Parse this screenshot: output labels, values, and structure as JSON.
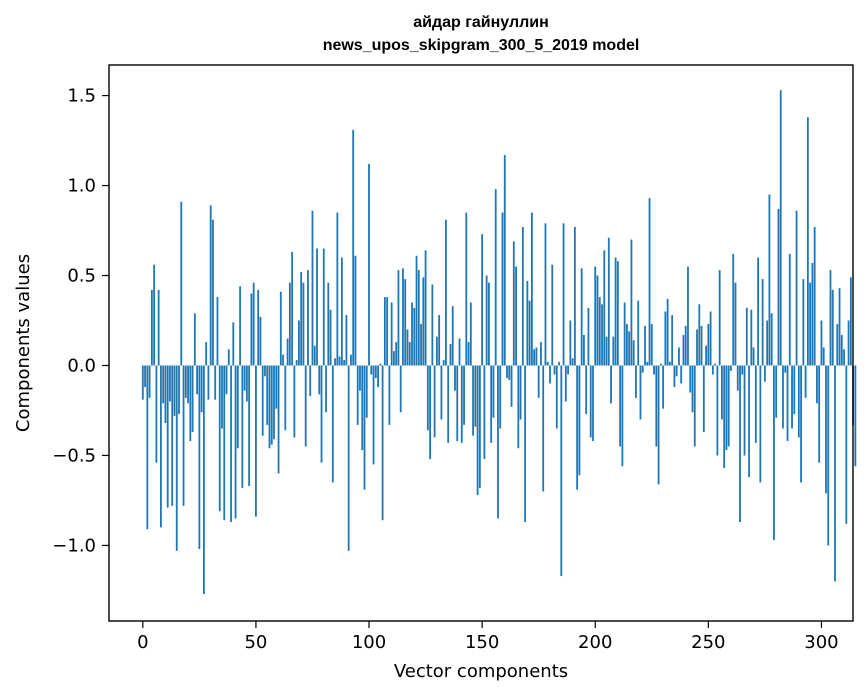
{
  "chart_data": {
    "type": "bar",
    "title": "айдар гайнуллин",
    "subtitle": "news_upos_skipgram_300_5_2019 model",
    "xlabel": "Vector components",
    "ylabel": "Components values",
    "xlim": [
      -14.95,
      313.95
    ],
    "ylim": [
      -1.42,
      1.67
    ],
    "xticks": [
      0,
      50,
      100,
      150,
      200,
      250,
      300
    ],
    "xtick_labels": [
      "0",
      "50",
      "100",
      "150",
      "200",
      "250",
      "300"
    ],
    "yticks": [
      -1.0,
      -0.5,
      0.0,
      0.5,
      1.0,
      1.5
    ],
    "ytick_labels": [
      "−1.0",
      "−0.5",
      "0.0",
      "0.5",
      "1.0",
      "1.5"
    ],
    "bar_color": "#1f77b4",
    "bar_width": 0.8,
    "grid": false,
    "values": [
      -0.19,
      -0.12,
      -0.91,
      -0.18,
      0.42,
      0.56,
      -0.54,
      0.42,
      -0.9,
      -0.21,
      -0.32,
      -0.79,
      -0.2,
      -0.78,
      -0.28,
      -1.03,
      -0.27,
      0.91,
      -0.78,
      -0.18,
      -0.21,
      -0.42,
      -0.37,
      0.29,
      -0.16,
      -1.02,
      -0.26,
      -1.27,
      0.13,
      -0.19,
      0.89,
      0.81,
      -0.19,
      0.38,
      -0.81,
      -0.35,
      -0.86,
      -0.16,
      0.09,
      -0.87,
      0.24,
      -0.85,
      -0.46,
      0.44,
      -0.68,
      -0.14,
      -0.2,
      -0.67,
      0.4,
      0.46,
      -0.84,
      0.42,
      0.27,
      -0.39,
      -0.06,
      -0.33,
      -0.46,
      -0.44,
      -0.41,
      -0.24,
      -0.6,
      0.41,
      0.06,
      -0.36,
      0.15,
      0.46,
      0.63,
      -0.4,
      0.03,
      0.25,
      0.52,
      0.46,
      -0.45,
      0.53,
      -0.17,
      0.86,
      0.11,
      0.65,
      -0.16,
      -0.54,
      0.65,
      -0.26,
      0.46,
      0.31,
      -0.65,
      0.04,
      0.85,
      0.05,
      0.6,
      0.03,
      0.28,
      -1.03,
      0.06,
      1.31,
      0.61,
      -0.33,
      -0.14,
      -0.47,
      -0.69,
      -0.29,
      1.12,
      -0.05,
      -0.55,
      -0.07,
      -0.12,
      0.01,
      -0.86,
      0.38,
      0.38,
      -0.33,
      0.35,
      0.08,
      0.13,
      0.53,
      -0.26,
      0.54,
      0.48,
      0.2,
      0.13,
      0.35,
      0.32,
      0.61,
      0.53,
      0.23,
      0.49,
      0.64,
      -0.36,
      -0.52,
      0.45,
      -0.4,
      0.16,
      0.28,
      -0.3,
      0.03,
      0.81,
      -0.43,
      0.12,
      0.33,
      -0.14,
      -0.42,
      0.15,
      -0.43,
      -0.33,
      0.85,
      0.13,
      0.35,
      -0.39,
      -0.34,
      -0.72,
      -0.68,
      0.73,
      -0.52,
      0.5,
      0.46,
      -0.43,
      -0.29,
      0.98,
      -0.85,
      -0.35,
      0.85,
      1.17,
      -0.07,
      -0.08,
      -0.23,
      0.69,
      0.55,
      -0.46,
      -0.3,
      0.77,
      -0.87,
      0.47,
      0.36,
      0.85,
      0.09,
      0.1,
      -0.18,
      0.13,
      -0.7,
      0.79,
      0.02,
      -0.1,
      0.56,
      -0.05,
      -0.35,
      0.02,
      -1.17,
      0.79,
      -0.2,
      -0.05,
      0.25,
      0.04,
      0.77,
      -0.69,
      -0.61,
      0.54,
      0.17,
      -0.27,
      0.32,
      -0.4,
      -0.42,
      0.55,
      0.5,
      0.38,
      0.34,
      0.64,
      0.16,
      0.71,
      -0.21,
      0.16,
      0.6,
      0.58,
      -0.45,
      -0.56,
      0.35,
      0.23,
      0.19,
      0.7,
      0.14,
      -0.18,
      0.36,
      -0.3,
      -0.04,
      0.22,
      0.02,
      0.93,
      0.23,
      -0.05,
      -0.45,
      -0.66,
      0.01,
      -0.24,
      0.3,
      0.37,
      0.02,
      0.28,
      -0.12,
      -0.06,
      0.1,
      -0.1,
      0.17,
      0.22,
      0.55,
      -0.15,
      -0.26,
      -0.45,
      0.2,
      0.34,
      0.22,
      -0.37,
      0.11,
      0.23,
      0.3,
      -0.05,
      0.01,
      -0.5,
      0.53,
      -0.3,
      -0.57,
      -0.47,
      -0.45,
      -0.03,
      0.62,
      0.46,
      -0.14,
      -0.87,
      -0.05,
      -0.5,
      0.32,
      -0.62,
      0.31,
      0.1,
      -0.43,
      0.6,
      -0.65,
      0.48,
      -0.09,
      0.25,
      0.95,
      0.29,
      -0.97,
      -0.29,
      0.87,
      1.53,
      -0.35,
      -0.04,
      -0.42,
      0.62,
      -0.35,
      -0.27,
      0.86,
      -0.4,
      -0.65,
      0.48,
      -0.18,
      1.38,
      0.46,
      0.57,
      0.77,
      -0.21,
      -0.54,
      0.25,
      0.1,
      -0.71,
      -1.0,
      0.53,
      0.42,
      -1.2,
      0.23,
      0.43,
      0.17,
      0.09,
      -0.88,
      0.25,
      0.49,
      -0.33,
      -0.56
    ]
  }
}
